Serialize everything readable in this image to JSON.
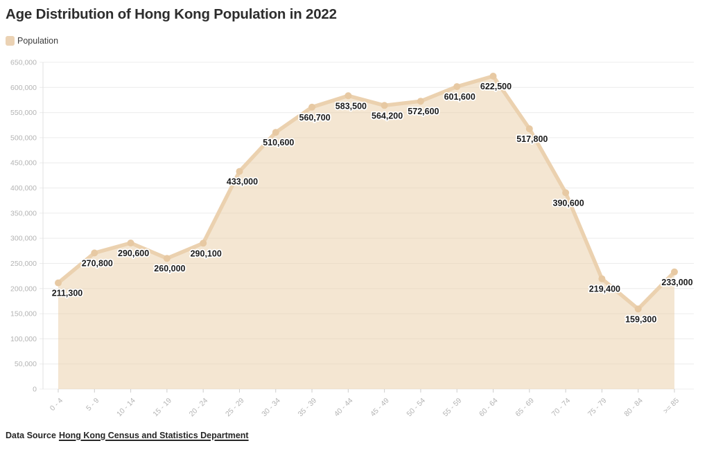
{
  "header": {
    "title": "Age Distribution of Hong Kong Population in 2022"
  },
  "legend": {
    "items": [
      {
        "label": "Population",
        "color": "#ebd2b4"
      }
    ]
  },
  "chart_data": {
    "type": "area",
    "title": "Age Distribution of Hong Kong Population in 2022",
    "categories": [
      "0 - 4",
      "5 - 9",
      "10 - 14",
      "15 - 19",
      "20 - 24",
      "25 - 29",
      "30 - 34",
      "35 - 39",
      "40 - 44",
      "45 - 49",
      "50 - 54",
      "55 - 59",
      "60 - 64",
      "65 - 69",
      "70 - 74",
      "75 - 79",
      "80 - 84",
      ">= 85"
    ],
    "series": [
      {
        "name": "Population",
        "values": [
          211300,
          270800,
          290600,
          260000,
          290100,
          433000,
          510600,
          560700,
          583500,
          564200,
          572600,
          601600,
          622500,
          517800,
          390600,
          219400,
          159300,
          233000
        ]
      }
    ],
    "xlabel": "",
    "ylabel": "",
    "ylim": [
      0,
      650000
    ],
    "ytick_step": 50000,
    "grid": "horizontal",
    "legend_position": "top-left",
    "data_labels": true,
    "colors": {
      "line": "#ebd1af",
      "fill": "rgba(234,205,166,0.5)",
      "marker": "#e7c9a3",
      "data_label": "#1a1a1a",
      "data_label_halo": "#ffffff",
      "axis_text": "#b3b3b3",
      "gridline": "#ececec",
      "axis_line": "#e0e0e0",
      "tick": "#cccccc"
    }
  },
  "footer": {
    "label": "Data Source",
    "link_text": "Hong Kong Census and Statistics Department"
  }
}
